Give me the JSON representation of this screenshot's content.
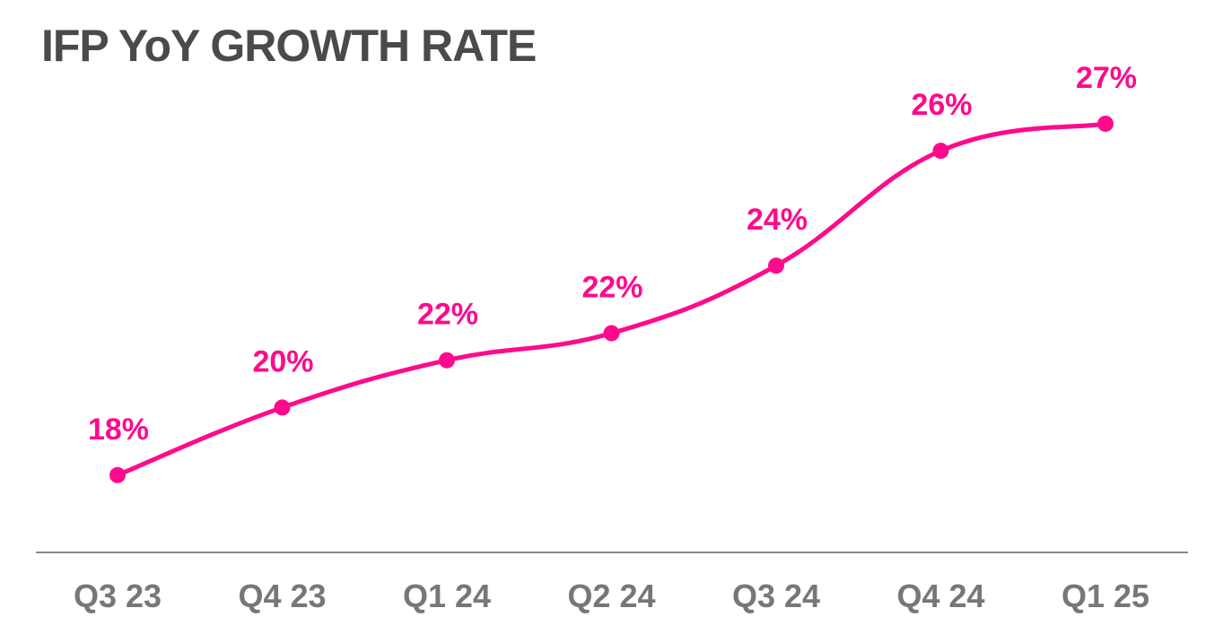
{
  "chart_data": {
    "type": "line",
    "title": "IFP YoY GROWTH RATE",
    "categories": [
      "Q3 23",
      "Q4 23",
      "Q1 24",
      "Q2 24",
      "Q3 24",
      "Q4 24",
      "Q1 25"
    ],
    "values": [
      18,
      20,
      22,
      22,
      24,
      26,
      27
    ],
    "point_positions": [
      17.9,
      19.9,
      21.3,
      22.1,
      24.1,
      27.5,
      28.3
    ],
    "data_labels": [
      "18%",
      "20%",
      "22%",
      "22%",
      "24%",
      "26%",
      "27%"
    ],
    "xlabel": "",
    "ylabel": "",
    "grid": false,
    "legend": "none",
    "line_color": "#ff0a8c",
    "title_color": "#4a4a4a",
    "axis_color": "#8a8a8a",
    "tick_color": "#777777"
  }
}
